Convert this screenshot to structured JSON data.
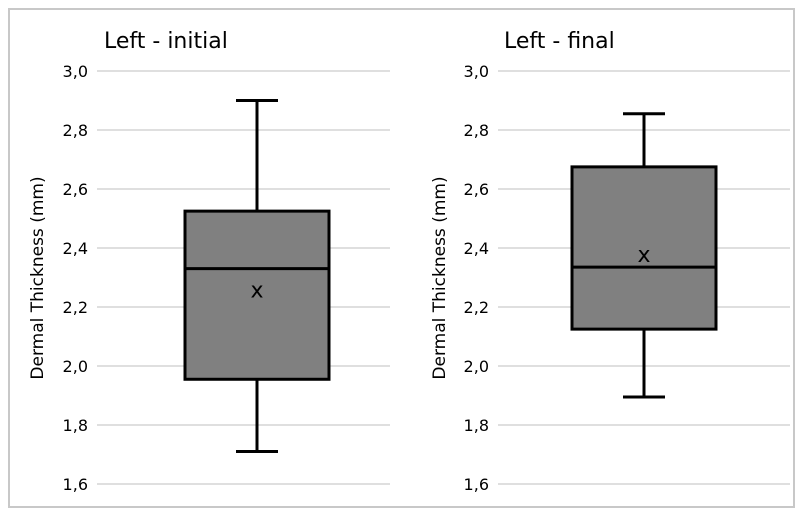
{
  "chart_data": [
    {
      "type": "box",
      "title": "Left - initial",
      "ylabel": "Dermal Thickness (mm)",
      "ylim": [
        1.6,
        3.0
      ],
      "yticks": [
        "1,6",
        "1,8",
        "2,0",
        "2,2",
        "2,4",
        "2,6",
        "2,8",
        "3,0"
      ],
      "grid": true,
      "stats": {
        "min": 1.71,
        "q1": 1.955,
        "median": 2.33,
        "q3": 2.525,
        "max": 2.9,
        "mean": 2.26
      },
      "mean_marker": "x"
    },
    {
      "type": "box",
      "title": "Left - final",
      "ylabel": "Dermal Thickness (mm)",
      "ylim": [
        1.6,
        3.0
      ],
      "yticks": [
        "1,6",
        "1,8",
        "2,0",
        "2,2",
        "2,4",
        "2,6",
        "2,8",
        "3,0"
      ],
      "grid": true,
      "stats": {
        "min": 1.895,
        "q1": 2.125,
        "median": 2.335,
        "q3": 2.675,
        "max": 2.855,
        "mean": 2.38
      },
      "mean_marker": "x"
    }
  ],
  "colors": {
    "box_fill": "#808080",
    "box_stroke": "#000000",
    "grid": "#bfbfbf",
    "frame": "#c8c8c8"
  }
}
